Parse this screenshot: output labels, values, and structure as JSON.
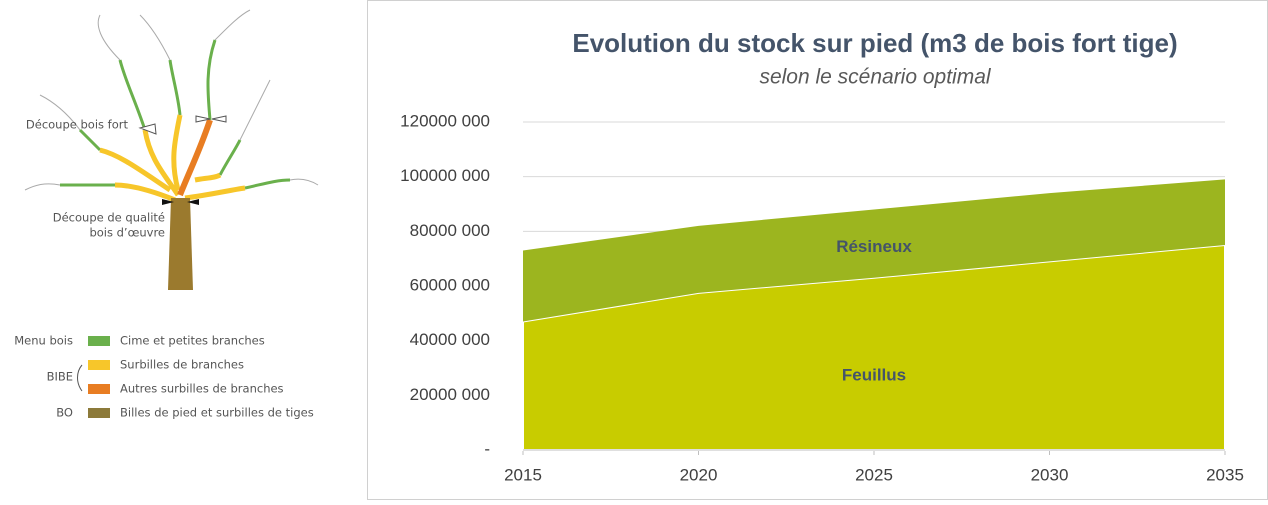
{
  "diagram": {
    "cut_labels": [
      "Découpe bois fort",
      "Découpe de qualité",
      "bois d’œuvre"
    ],
    "legend": [
      {
        "group": "Menu bois",
        "items": [
          "Cime et petites branches"
        ]
      },
      {
        "group": "BIBE",
        "items": [
          "Surbilles de branches",
          "Autres surbilles de branches"
        ]
      },
      {
        "group": "BO",
        "items": [
          "Billes de pied et surbilles de tiges"
        ]
      }
    ]
  },
  "chart_data": {
    "type": "stacked-area",
    "title": "Evolution du stock sur pied (m3 de bois fort tige)",
    "subtitle": "selon le scénario optimal",
    "x": [
      2015,
      2020,
      2025,
      2030,
      2035
    ],
    "series": [
      {
        "name": "Feuillus",
        "color": "#c8cc00",
        "values": [
          47000000,
          57500000,
          63000000,
          69000000,
          75000000
        ]
      },
      {
        "name": "Résineux",
        "color": "#9cb51f",
        "values": [
          26000000,
          24500000,
          25000000,
          25000000,
          24000000
        ]
      }
    ],
    "xlim": [
      2015,
      2035
    ],
    "xticks": [
      2015,
      2020,
      2025,
      2030,
      2035
    ],
    "ylim": [
      0,
      120000000
    ],
    "yticks": [
      {
        "value": 0,
        "label": "-"
      },
      {
        "value": 20000000,
        "label": "20000 000"
      },
      {
        "value": 40000000,
        "label": "40000 000"
      },
      {
        "value": 60000000,
        "label": "60000 000"
      },
      {
        "value": 80000000,
        "label": "80000 000"
      },
      {
        "value": 100000000,
        "label": "100000 000"
      },
      {
        "value": 120000000,
        "label": "120000 000"
      }
    ],
    "grid": true
  }
}
